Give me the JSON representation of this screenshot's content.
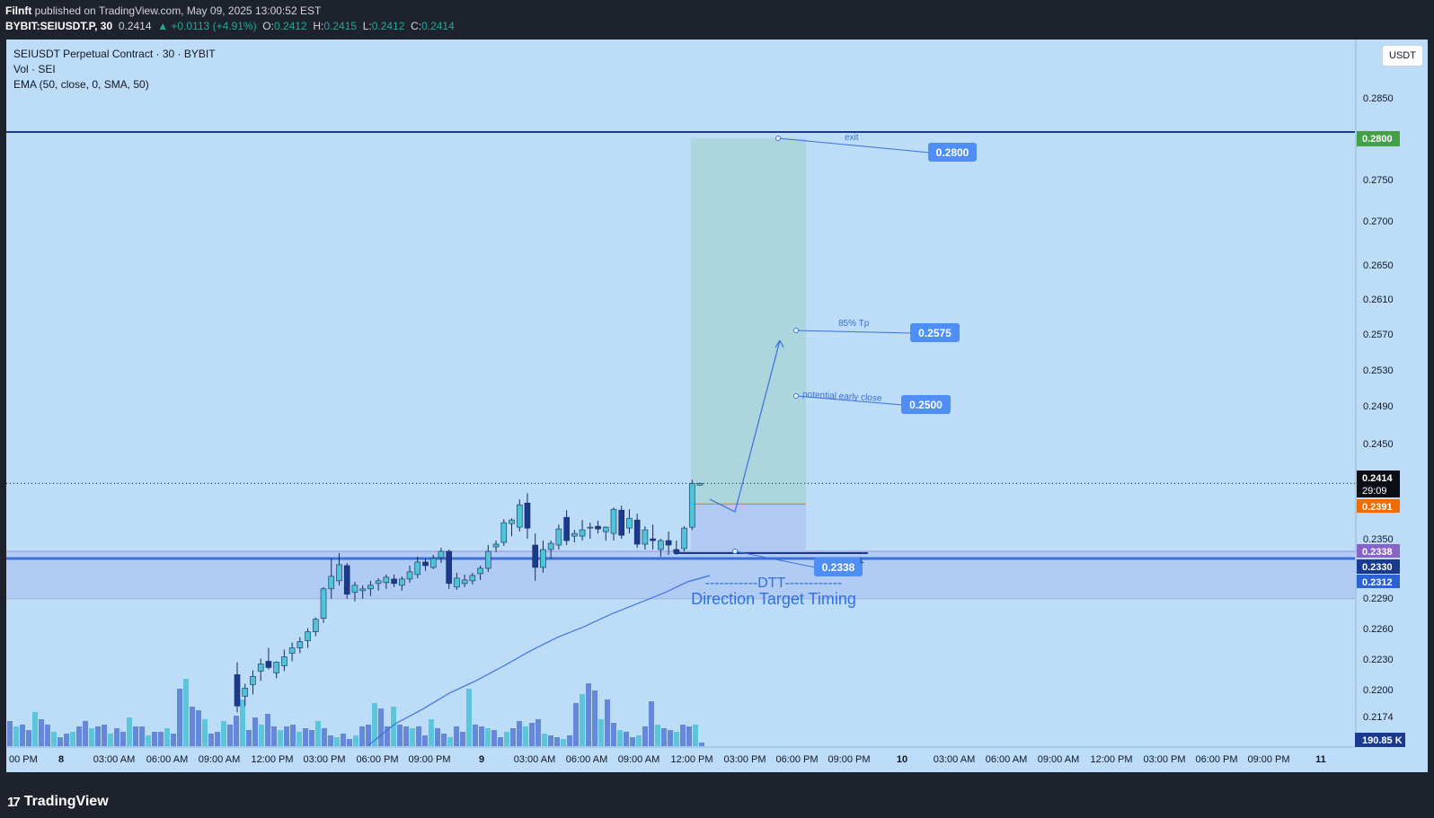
{
  "header": {
    "author": "Filnft",
    "published_text": "published on TradingView.com, May 09, 2025 13:00:52 EST",
    "symbol_line": "BYBIT:SEIUSDT.P, 30",
    "last": "0.2414",
    "change": "▲ +0.0113 (+4.91%)",
    "o_label": "O:",
    "o": "0.2412",
    "h_label": "H:",
    "h": "0.2415",
    "l_label": "L:",
    "l": "0.2412",
    "c_label": "C:",
    "c": "0.2414"
  },
  "legend": {
    "title": "SEIUSDT Perpetual Contract · 30 · BYBIT",
    "vol": "Vol · SEI",
    "ema": "EMA (50, close, 0, SMA, 50)"
  },
  "currency_button": "USDT",
  "colors": {
    "background": "#bcdcf8",
    "candle_up": "#4fc3d7",
    "candle_down": "#1a3a8f",
    "exit_green": "#43a047",
    "entry_orange": "#ef6c00",
    "label_blue": "#4f8ef5",
    "ema": "#3b6fe0"
  },
  "price_axis": {
    "ticks": [
      "0.2850",
      "0.2750",
      "0.2700",
      "0.2650",
      "0.2610",
      "0.2570",
      "0.2530",
      "0.2490",
      "0.2450",
      "0.2350",
      "0.2290",
      "0.2260",
      "0.2230",
      "0.2200",
      "0.2174"
    ],
    "badges": {
      "exit": "0.2800",
      "current": "0.2414",
      "countdown": "29:09",
      "entry": "0.2391",
      "zone_top": "0.2338",
      "zone_mid": "0.2330",
      "zone_bottom": "0.2312",
      "volume": "190.85 K"
    }
  },
  "time_axis": [
    "00 PM",
    "8",
    "03:00 AM",
    "06:00 AM",
    "09:00 AM",
    "12:00 PM",
    "03:00 PM",
    "06:00 PM",
    "09:00 PM",
    "9",
    "03:00 AM",
    "06:00 AM",
    "09:00 AM",
    "12:00 PM",
    "03:00 PM",
    "06:00 PM",
    "09:00 PM",
    "10",
    "03:00 AM",
    "06:00 AM",
    "09:00 AM",
    "12:00 PM",
    "03:00 PM",
    "06:00 PM",
    "09:00 PM",
    "11"
  ],
  "annotations": {
    "exit_note": "exit",
    "exit_price": "0.2800",
    "tp_note": "85% Tp",
    "tp_price": "0.2575",
    "early_note": "potential early close",
    "early_price": "0.2500",
    "stop_price": "0.2338",
    "stop_marker": "L",
    "dtt_line": "-----------DTT------------",
    "dtt_full": "Direction Target Timing"
  },
  "footer": {
    "brand": "TradingView",
    "brand_mark": "17"
  },
  "chart_data": {
    "type": "candlestick",
    "interval": "30",
    "ylim": [
      0.2165,
      0.2885
    ],
    "candles": [
      {
        "o": 0.22,
        "h": 0.2214,
        "l": 0.2158,
        "c": 0.2165
      },
      {
        "o": 0.2176,
        "h": 0.219,
        "l": 0.2165,
        "c": 0.2185
      },
      {
        "o": 0.2189,
        "h": 0.2205,
        "l": 0.2178,
        "c": 0.2198
      },
      {
        "o": 0.2204,
        "h": 0.2218,
        "l": 0.2193,
        "c": 0.2212
      },
      {
        "o": 0.2215,
        "h": 0.223,
        "l": 0.2206,
        "c": 0.2208
      },
      {
        "o": 0.2202,
        "h": 0.2215,
        "l": 0.2196,
        "c": 0.2214
      },
      {
        "o": 0.221,
        "h": 0.2228,
        "l": 0.2204,
        "c": 0.222
      },
      {
        "o": 0.2224,
        "h": 0.2236,
        "l": 0.2215,
        "c": 0.223
      },
      {
        "o": 0.223,
        "h": 0.2242,
        "l": 0.2224,
        "c": 0.2237
      },
      {
        "o": 0.2238,
        "h": 0.2252,
        "l": 0.223,
        "c": 0.2248
      },
      {
        "o": 0.2248,
        "h": 0.2264,
        "l": 0.2243,
        "c": 0.2262
      },
      {
        "o": 0.2263,
        "h": 0.2298,
        "l": 0.2258,
        "c": 0.2296
      },
      {
        "o": 0.2296,
        "h": 0.233,
        "l": 0.2285,
        "c": 0.231
      },
      {
        "o": 0.2305,
        "h": 0.2336,
        "l": 0.23,
        "c": 0.2323
      },
      {
        "o": 0.2322,
        "h": 0.2325,
        "l": 0.2285,
        "c": 0.229
      },
      {
        "o": 0.2292,
        "h": 0.2304,
        "l": 0.2282,
        "c": 0.23
      },
      {
        "o": 0.2294,
        "h": 0.23,
        "l": 0.2285,
        "c": 0.2296
      },
      {
        "o": 0.2296,
        "h": 0.2305,
        "l": 0.2288,
        "c": 0.23
      },
      {
        "o": 0.2302,
        "h": 0.2308,
        "l": 0.2294,
        "c": 0.2305
      },
      {
        "o": 0.2303,
        "h": 0.2312,
        "l": 0.2296,
        "c": 0.2309
      },
      {
        "o": 0.2307,
        "h": 0.2312,
        "l": 0.2298,
        "c": 0.2302
      },
      {
        "o": 0.23,
        "h": 0.231,
        "l": 0.2294,
        "c": 0.2307
      },
      {
        "o": 0.2307,
        "h": 0.2322,
        "l": 0.2303,
        "c": 0.2315
      },
      {
        "o": 0.2312,
        "h": 0.2332,
        "l": 0.2308,
        "c": 0.2326
      },
      {
        "o": 0.2326,
        "h": 0.233,
        "l": 0.2316,
        "c": 0.2322
      },
      {
        "o": 0.232,
        "h": 0.2334,
        "l": 0.2318,
        "c": 0.233
      },
      {
        "o": 0.2331,
        "h": 0.2342,
        "l": 0.2325,
        "c": 0.2338
      },
      {
        "o": 0.2338,
        "h": 0.234,
        "l": 0.2296,
        "c": 0.2302
      },
      {
        "o": 0.2298,
        "h": 0.2314,
        "l": 0.2295,
        "c": 0.2308
      },
      {
        "o": 0.2302,
        "h": 0.2312,
        "l": 0.2298,
        "c": 0.2306
      },
      {
        "o": 0.2305,
        "h": 0.2314,
        "l": 0.2301,
        "c": 0.2311
      },
      {
        "o": 0.2313,
        "h": 0.2322,
        "l": 0.2306,
        "c": 0.2319
      },
      {
        "o": 0.2319,
        "h": 0.2345,
        "l": 0.2315,
        "c": 0.2338
      },
      {
        "o": 0.2343,
        "h": 0.235,
        "l": 0.2337,
        "c": 0.2346
      },
      {
        "o": 0.2348,
        "h": 0.2374,
        "l": 0.2344,
        "c": 0.237
      },
      {
        "o": 0.2369,
        "h": 0.2375,
        "l": 0.2355,
        "c": 0.2373
      },
      {
        "o": 0.2365,
        "h": 0.2396,
        "l": 0.236,
        "c": 0.239
      },
      {
        "o": 0.2392,
        "h": 0.2403,
        "l": 0.2352,
        "c": 0.2364
      },
      {
        "o": 0.2345,
        "h": 0.2358,
        "l": 0.2305,
        "c": 0.232
      },
      {
        "o": 0.232,
        "h": 0.235,
        "l": 0.2314,
        "c": 0.234
      },
      {
        "o": 0.234,
        "h": 0.235,
        "l": 0.233,
        "c": 0.2347
      },
      {
        "o": 0.2345,
        "h": 0.2368,
        "l": 0.234,
        "c": 0.2363
      },
      {
        "o": 0.2376,
        "h": 0.2384,
        "l": 0.2345,
        "c": 0.235
      },
      {
        "o": 0.2355,
        "h": 0.2362,
        "l": 0.2348,
        "c": 0.2358
      },
      {
        "o": 0.2355,
        "h": 0.2373,
        "l": 0.235,
        "c": 0.2362
      },
      {
        "o": 0.2364,
        "h": 0.237,
        "l": 0.2352,
        "c": 0.2365
      },
      {
        "o": 0.2366,
        "h": 0.2372,
        "l": 0.2358,
        "c": 0.2363
      },
      {
        "o": 0.236,
        "h": 0.2366,
        "l": 0.235,
        "c": 0.2365
      },
      {
        "o": 0.2358,
        "h": 0.2387,
        "l": 0.235,
        "c": 0.2385
      },
      {
        "o": 0.2384,
        "h": 0.2389,
        "l": 0.2352,
        "c": 0.2356
      },
      {
        "o": 0.2364,
        "h": 0.2385,
        "l": 0.2358,
        "c": 0.2375
      },
      {
        "o": 0.2373,
        "h": 0.238,
        "l": 0.2342,
        "c": 0.2346
      },
      {
        "o": 0.2346,
        "h": 0.2366,
        "l": 0.234,
        "c": 0.2362
      },
      {
        "o": 0.2352,
        "h": 0.2368,
        "l": 0.234,
        "c": 0.235
      },
      {
        "o": 0.234,
        "h": 0.2352,
        "l": 0.2332,
        "c": 0.235
      },
      {
        "o": 0.235,
        "h": 0.236,
        "l": 0.2334,
        "c": 0.2345
      },
      {
        "o": 0.234,
        "h": 0.235,
        "l": 0.2334,
        "c": 0.2336
      },
      {
        "o": 0.2341,
        "h": 0.2366,
        "l": 0.2338,
        "c": 0.2364
      },
      {
        "o": 0.2365,
        "h": 0.2418,
        "l": 0.2362,
        "c": 0.2414
      },
      {
        "o": 0.2412,
        "h": 0.2415,
        "l": 0.2412,
        "c": 0.2414
      }
    ],
    "volume": [
      28,
      22,
      24,
      18,
      38,
      30,
      24,
      16,
      10,
      14,
      16,
      22,
      28,
      20,
      22,
      24,
      14,
      20,
      16,
      32,
      22,
      22,
      12,
      16,
      16,
      20,
      14,
      64,
      75,
      44,
      40,
      30,
      14,
      16,
      28,
      24,
      34,
      52,
      18,
      32,
      24,
      36,
      22,
      18,
      22,
      24,
      16,
      20,
      18,
      28,
      20,
      12,
      10,
      14,
      8,
      12,
      22,
      24,
      48,
      42,
      22,
      44,
      24,
      22,
      20,
      22,
      12,
      30,
      20,
      14,
      10,
      22,
      16,
      64,
      24,
      22,
      20,
      18,
      10,
      16,
      20,
      28,
      22,
      26,
      30,
      14,
      12,
      10,
      8,
      12,
      48,
      58,
      70,
      62,
      30,
      52,
      26,
      18,
      16,
      10,
      12,
      22,
      50,
      24,
      20,
      18,
      16,
      24,
      22,
      24,
      4
    ],
    "ema_series": "EMA (50, close, 0, SMA, 50)",
    "levels": {
      "exit": 0.28,
      "take_profit": 0.2575,
      "early_close": 0.25,
      "current": 0.2414,
      "entry": 0.2391,
      "stop": 0.2338,
      "zone_mid": 0.233,
      "zone_bottom": 0.2312
    }
  }
}
